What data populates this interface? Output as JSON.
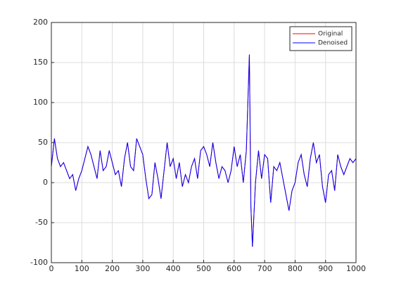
{
  "chart_data": {
    "type": "line",
    "x": [
      0,
      10,
      20,
      30,
      40,
      50,
      60,
      70,
      80,
      90,
      100,
      110,
      120,
      130,
      140,
      150,
      160,
      170,
      180,
      190,
      200,
      210,
      220,
      230,
      240,
      250,
      260,
      270,
      280,
      290,
      300,
      310,
      320,
      330,
      340,
      350,
      360,
      370,
      380,
      390,
      400,
      410,
      420,
      430,
      440,
      450,
      460,
      470,
      480,
      490,
      500,
      510,
      520,
      530,
      540,
      550,
      560,
      570,
      580,
      590,
      600,
      610,
      620,
      630,
      640,
      645,
      650,
      655,
      660,
      665,
      670,
      680,
      690,
      700,
      710,
      720,
      730,
      740,
      750,
      760,
      770,
      780,
      790,
      800,
      810,
      820,
      830,
      840,
      850,
      860,
      870,
      880,
      890,
      900,
      910,
      920,
      930,
      940,
      950,
      960,
      970,
      980,
      990,
      1000
    ],
    "series": [
      {
        "name": "Original",
        "color": "#ff0000",
        "values": [
          20,
          55,
          30,
          20,
          25,
          15,
          5,
          10,
          -10,
          5,
          15,
          30,
          45,
          35,
          20,
          5,
          40,
          15,
          20,
          40,
          25,
          10,
          15,
          -5,
          30,
          50,
          20,
          15,
          55,
          45,
          35,
          5,
          -20,
          -15,
          25,
          5,
          -20,
          15,
          50,
          20,
          30,
          5,
          25,
          -5,
          10,
          0,
          20,
          30,
          5,
          40,
          45,
          35,
          20,
          50,
          25,
          5,
          20,
          15,
          0,
          15,
          45,
          20,
          35,
          0,
          40,
          100,
          160,
          -30,
          -80,
          -40,
          0,
          40,
          5,
          35,
          30,
          -25,
          20,
          15,
          25,
          5,
          -15,
          -35,
          -10,
          0,
          25,
          35,
          10,
          -5,
          30,
          50,
          25,
          35,
          -5,
          -25,
          10,
          15,
          -10,
          35,
          20,
          10,
          20,
          30,
          25,
          30
        ]
      },
      {
        "name": "Denoised",
        "color": "#0000ff",
        "values": [
          20,
          55,
          30,
          20,
          25,
          15,
          5,
          10,
          -10,
          5,
          15,
          30,
          45,
          35,
          20,
          5,
          40,
          15,
          20,
          40,
          25,
          10,
          15,
          -5,
          30,
          50,
          20,
          15,
          55,
          45,
          35,
          5,
          -20,
          -15,
          25,
          5,
          -20,
          15,
          50,
          20,
          30,
          5,
          25,
          -5,
          10,
          0,
          20,
          30,
          5,
          40,
          45,
          35,
          20,
          50,
          25,
          5,
          20,
          15,
          0,
          15,
          45,
          20,
          35,
          0,
          40,
          100,
          160,
          -30,
          -80,
          -40,
          0,
          40,
          5,
          35,
          30,
          -25,
          20,
          15,
          25,
          5,
          -15,
          -35,
          -10,
          0,
          25,
          35,
          10,
          -5,
          30,
          50,
          25,
          35,
          -5,
          -25,
          10,
          15,
          -10,
          35,
          20,
          10,
          20,
          30,
          25,
          30
        ]
      }
    ],
    "xlim": [
      0,
      1000
    ],
    "xticks": [
      0,
      100,
      200,
      300,
      400,
      500,
      600,
      700,
      800,
      900,
      1000
    ],
    "ylim": [
      -100,
      200
    ],
    "yticks": [
      -100,
      -50,
      0,
      50,
      100,
      150,
      200
    ],
    "grid": true,
    "legend": "northeast"
  }
}
